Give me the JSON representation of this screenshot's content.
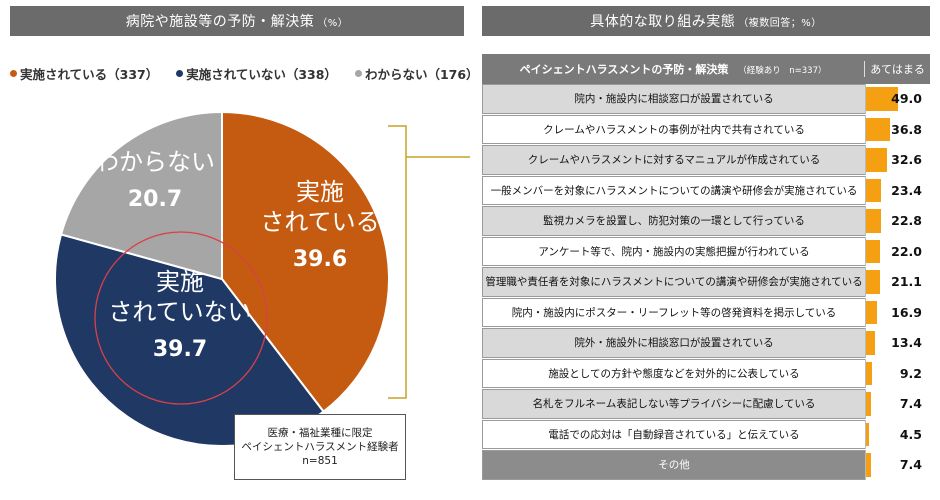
{
  "left_panel": {
    "title": "病院や施設等の予防・解決策",
    "title_unit": "（%）",
    "note_lines": [
      "医療・福祉業種に限定",
      "ペイシェントハラスメント経験者",
      "n=851"
    ]
  },
  "right_panel": {
    "title": "具体的な取り組み実態",
    "title_unit": "（複数回答；%）",
    "col_header": "ペイシェントハラスメントの予防・解決策",
    "col_header_sub": "（経験あり　n=337）",
    "value_header": "あてはまる"
  },
  "colors": {
    "implemented": "#c55a11",
    "not_implemented": "#203864",
    "unknown": "#a6a6a6",
    "bar": "#f5a012",
    "highlight_circle": "#d9404a",
    "bracket": "#c9a227"
  },
  "chart_data": [
    {
      "type": "pie",
      "slices": [
        {
          "key": "implemented",
          "legend": "実施されている（337）",
          "label_lines": [
            "実施",
            "されている"
          ],
          "value": 39.6
        },
        {
          "key": "not_implemented",
          "legend": "実施されていない（338）",
          "label_lines": [
            "実施",
            "されていない"
          ],
          "value": 39.7
        },
        {
          "key": "unknown",
          "legend": "わからない（176）",
          "label_lines": [
            "わからない"
          ],
          "value": 20.7
        }
      ]
    },
    {
      "type": "bar",
      "xlim": [
        0,
        100
      ],
      "categories": [
        "院内・施設内に相談窓口が設置されている",
        "クレームやハラスメントの事例が社内で共有されている",
        "クレームやハラスメントに対するマニュアルが作成されている",
        "一般メンバーを対象にハラスメントについての講演や研修会が実施されている",
        "監視カメラを設置し、防犯対策の一環として行っている",
        "アンケート等で、院内・施設内の実態把握が行われている",
        "管理職や責任者を対象にハラスメントについての講演や研修会が実施されている",
        "院内・施設内にポスター・リーフレット等の啓発資料を掲示している",
        "院外・施設外に相談窓口が設置されている",
        "施設としての方針や態度などを対外的に公表している",
        "名札をフルネーム表記しない等プライバシーに配慮している",
        "電話での応対は「自動録音されている」と伝えている",
        "その他"
      ],
      "values": [
        49.0,
        36.8,
        32.6,
        23.4,
        22.8,
        22.0,
        21.1,
        16.9,
        13.4,
        9.2,
        7.4,
        4.5,
        7.4
      ],
      "value_labels": [
        "49.0",
        "36.8",
        "32.6",
        "23.4",
        "22.8",
        "22.0",
        "21.1",
        "16.9",
        "13.4",
        "9.2",
        "7.4",
        "4.5",
        "7.4"
      ]
    }
  ]
}
